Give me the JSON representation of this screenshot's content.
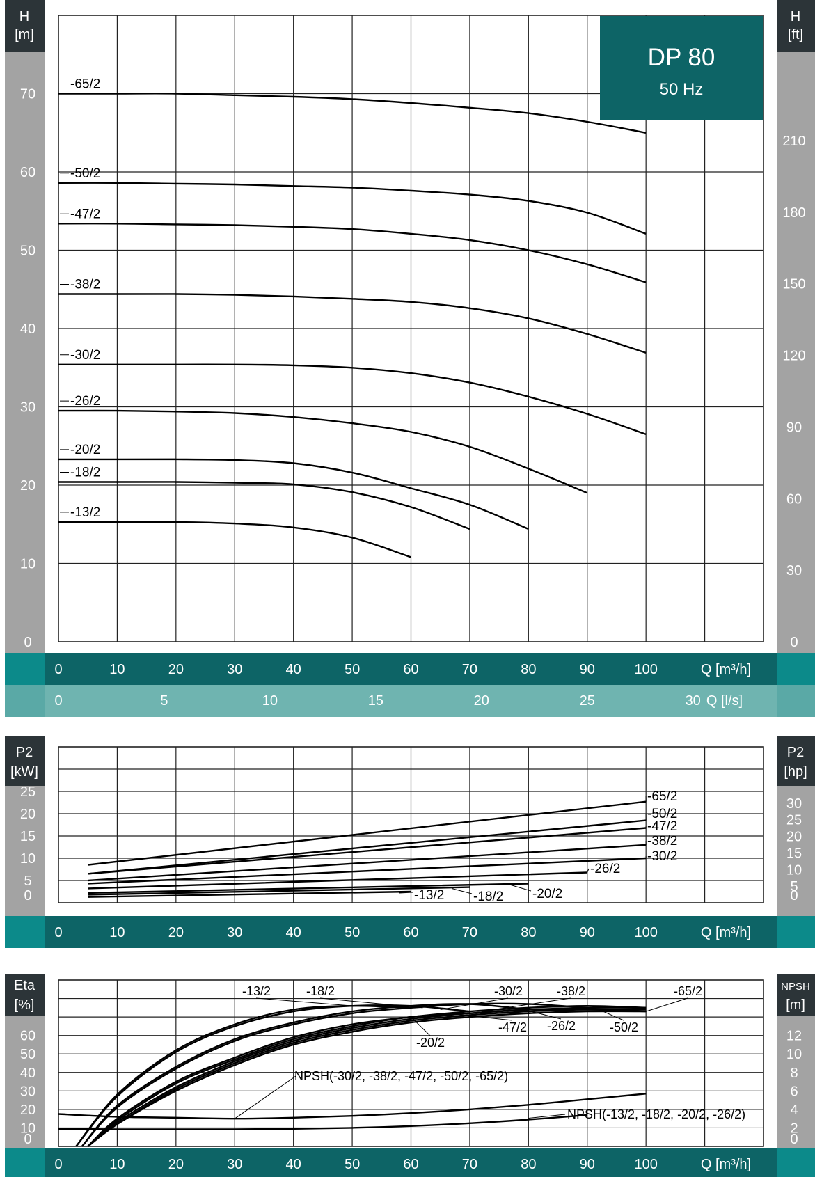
{
  "title": "DP 80",
  "subtitle": "50 Hz",
  "colors": {
    "dark_teal": "#0d6466",
    "light_teal": "#6fb4b0",
    "side_gray": "#a3a3a3",
    "header_dark": "#2c3438",
    "corner_teal": "#0c8a8a",
    "corner_light": "#5aa9a6",
    "grid": "#222222",
    "curve": "#000000"
  },
  "x_axis": {
    "ticks_m3h": [
      "0",
      "10",
      "20",
      "30",
      "40",
      "50",
      "60",
      "70",
      "80",
      "90",
      "100"
    ],
    "label_m3h": "Q [m³/h]",
    "ticks_ls": [
      "0",
      "5",
      "10",
      "15",
      "20",
      "25",
      "30"
    ],
    "label_ls": "Q [l/s]"
  },
  "chart_data": [
    {
      "type": "line",
      "name": "head",
      "xlabel": "Q [m³/h]",
      "ylabel": "H [m]",
      "ylabel_right": "H [ft]",
      "xlim": [
        0,
        120
      ],
      "ylim": [
        0,
        80
      ],
      "yticks": [
        "0",
        "10",
        "20",
        "30",
        "40",
        "50",
        "60",
        "70"
      ],
      "yticks_right": [
        "0",
        "30",
        "60",
        "90",
        "120",
        "150",
        "180",
        "210"
      ],
      "grid": true,
      "series": [
        {
          "name": "-65/2",
          "x": [
            0,
            10,
            20,
            30,
            40,
            50,
            60,
            70,
            80,
            90,
            100
          ],
          "y": [
            70,
            70,
            70,
            69.8,
            69.6,
            69.3,
            68.8,
            68.2,
            67.5,
            66.4,
            65
          ]
        },
        {
          "name": "-50/2",
          "x": [
            0,
            10,
            20,
            30,
            40,
            50,
            60,
            70,
            80,
            90,
            100
          ],
          "y": [
            58.6,
            58.6,
            58.5,
            58.4,
            58.2,
            58,
            57.6,
            57.1,
            56.3,
            54.8,
            52.1
          ]
        },
        {
          "name": "-47/2",
          "x": [
            0,
            10,
            20,
            30,
            40,
            50,
            60,
            70,
            80,
            90,
            100
          ],
          "y": [
            53.4,
            53.4,
            53.3,
            53.2,
            53,
            52.7,
            52.1,
            51.3,
            50,
            48.2,
            45.9
          ]
        },
        {
          "name": "-38/2",
          "x": [
            0,
            10,
            20,
            30,
            40,
            50,
            60,
            70,
            80,
            90,
            100
          ],
          "y": [
            44.4,
            44.4,
            44.4,
            44.3,
            44.1,
            43.8,
            43.4,
            42.6,
            41.3,
            39.3,
            36.9
          ]
        },
        {
          "name": "-30/2",
          "x": [
            0,
            10,
            20,
            30,
            40,
            50,
            60,
            70,
            80,
            90,
            100
          ],
          "y": [
            35.4,
            35.4,
            35.4,
            35.4,
            35.3,
            35,
            34.3,
            33.1,
            31.3,
            29.1,
            26.5
          ]
        },
        {
          "name": "-26/2",
          "x": [
            0,
            10,
            20,
            30,
            40,
            50,
            60,
            70,
            80,
            90
          ],
          "y": [
            29.5,
            29.5,
            29.4,
            29.2,
            28.7,
            27.9,
            26.8,
            24.9,
            22.1,
            19
          ]
        },
        {
          "name": "-20/2",
          "x": [
            0,
            10,
            20,
            30,
            40,
            50,
            60,
            70,
            80
          ],
          "y": [
            23.3,
            23.3,
            23.3,
            23.2,
            22.8,
            21.6,
            19.6,
            17.5,
            14.4
          ]
        },
        {
          "name": "-18/2",
          "x": [
            0,
            10,
            20,
            30,
            40,
            50,
            60,
            70
          ],
          "y": [
            20.4,
            20.4,
            20.4,
            20.3,
            20.1,
            19.1,
            17.2,
            14.4
          ]
        },
        {
          "name": "-13/2",
          "x": [
            0,
            10,
            20,
            30,
            40,
            50,
            60
          ],
          "y": [
            15.3,
            15.3,
            15.3,
            15.1,
            14.6,
            13.3,
            10.8
          ]
        }
      ]
    },
    {
      "type": "line",
      "name": "power",
      "xlabel": "Q [m³/h]",
      "ylabel": "P2 [kW]",
      "ylabel_right": "P2 [hp]",
      "xlim": [
        0,
        120
      ],
      "ylim": [
        0,
        35
      ],
      "yticks": [
        "0",
        "5",
        "10",
        "15",
        "20",
        "25"
      ],
      "yticks_right": [
        "0",
        "5",
        "10",
        "15",
        "20",
        "25",
        "30"
      ],
      "grid": true,
      "series": [
        {
          "name": "-65/2",
          "x": [
            5,
            100
          ],
          "y": [
            8.5,
            22.7
          ]
        },
        {
          "name": "-50/2",
          "x": [
            5,
            100
          ],
          "y": [
            6.5,
            18.5
          ]
        },
        {
          "name": "-47/2",
          "x": [
            5,
            100
          ],
          "y": [
            6.5,
            16.8
          ]
        },
        {
          "name": "-38/2",
          "x": [
            5,
            100
          ],
          "y": [
            5,
            13
          ]
        },
        {
          "name": "-30/2",
          "x": [
            5,
            100
          ],
          "y": [
            4.3,
            10
          ]
        },
        {
          "name": "-26/2",
          "x": [
            5,
            90
          ],
          "y": [
            3.2,
            6.8
          ]
        },
        {
          "name": "-20/2",
          "x": [
            5,
            80
          ],
          "y": [
            2.2,
            4.3
          ]
        },
        {
          "name": "-18/2",
          "x": [
            5,
            70
          ],
          "y": [
            1.8,
            3.5
          ]
        },
        {
          "name": "-13/2",
          "x": [
            5,
            60
          ],
          "y": [
            1.3,
            2.5
          ]
        }
      ]
    },
    {
      "type": "line",
      "name": "efficiency-npsh",
      "xlabel": "Q [m³/h]",
      "ylabel": "Eta [%]",
      "ylabel_right": "NPSH [m]",
      "xlim": [
        0,
        120
      ],
      "ylim": [
        0,
        90
      ],
      "yticks": [
        "0",
        "10",
        "20",
        "30",
        "40",
        "50",
        "60"
      ],
      "yticks_right": [
        "0",
        "2",
        "4",
        "6",
        "8",
        "10",
        "12"
      ],
      "grid": true,
      "series": [
        {
          "name": "-13/2",
          "x": [
            3,
            10,
            20,
            30,
            40,
            50,
            60
          ],
          "y": [
            0,
            28,
            52,
            66,
            74,
            76,
            75
          ]
        },
        {
          "name": "-18/2",
          "x": [
            3,
            10,
            20,
            30,
            40,
            50,
            60,
            70
          ],
          "y": [
            0,
            27,
            51,
            65,
            73,
            76,
            76,
            73
          ]
        },
        {
          "name": "-20/2",
          "x": [
            4,
            10,
            20,
            30,
            40,
            50,
            60,
            70,
            80
          ],
          "y": [
            0,
            22,
            43,
            58,
            67,
            73,
            76,
            77,
            74
          ]
        },
        {
          "name": "-26/2",
          "x": [
            4,
            10,
            20,
            30,
            40,
            50,
            60,
            70,
            80,
            90
          ],
          "y": [
            0,
            21,
            42,
            57,
            66,
            72,
            75,
            77,
            77,
            75
          ]
        },
        {
          "name": "-30/2",
          "x": [
            5,
            10,
            20,
            30,
            40,
            50,
            60,
            70,
            80,
            90,
            100
          ],
          "y": [
            0,
            15,
            35,
            48,
            59,
            66,
            70,
            73,
            75,
            76,
            75
          ]
        },
        {
          "name": "-38/2",
          "x": [
            5,
            10,
            20,
            30,
            40,
            50,
            60,
            70,
            80,
            90,
            100
          ],
          "y": [
            0,
            14,
            34,
            47,
            58,
            65,
            70,
            72,
            74,
            75,
            75
          ]
        },
        {
          "name": "-47/2",
          "x": [
            5,
            10,
            20,
            30,
            40,
            50,
            60,
            70,
            80,
            90,
            100
          ],
          "y": [
            0,
            13,
            32,
            46,
            57,
            64,
            69,
            72,
            74,
            74,
            74
          ]
        },
        {
          "name": "-50/2",
          "x": [
            5,
            10,
            20,
            30,
            40,
            50,
            60,
            70,
            80,
            90,
            100
          ],
          "y": [
            0,
            12,
            31,
            45,
            56,
            63,
            68,
            71,
            73,
            74,
            73
          ]
        },
        {
          "name": "-65/2",
          "x": [
            5,
            10,
            20,
            30,
            40,
            50,
            60,
            70,
            80,
            90,
            100
          ],
          "y": [
            0,
            12,
            30,
            44,
            55,
            62,
            67,
            70,
            72,
            73,
            73
          ]
        },
        {
          "name": "NPSH(-30/2, -38/2, -47/2, -50/2, -65/2)",
          "x": [
            0,
            10,
            20,
            30,
            40,
            50,
            60,
            70,
            80,
            90,
            100
          ],
          "y": [
            3.5,
            3.2,
            3.1,
            3,
            3.1,
            3.3,
            3.6,
            4,
            4.5,
            5.1,
            5.7
          ]
        },
        {
          "name": "NPSH(-13/2, -18/2, -20/2, -26/2)",
          "x": [
            0,
            10,
            20,
            30,
            40,
            50,
            60,
            70,
            80,
            90
          ],
          "y": [
            1.9,
            1.85,
            1.85,
            1.85,
            1.9,
            2,
            2.2,
            2.5,
            2.9,
            3.4
          ]
        }
      ]
    }
  ]
}
